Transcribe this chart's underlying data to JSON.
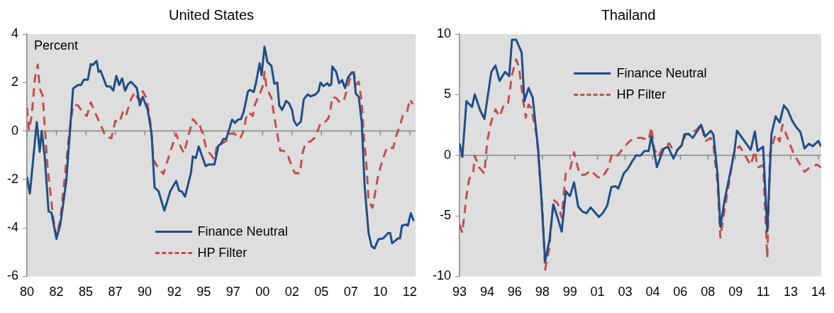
{
  "chart_data": [
    {
      "type": "line",
      "title": "United States",
      "ylabel": "Percent",
      "xlim": [
        "1980-01",
        "2013-01"
      ],
      "ylim": [
        -6,
        4
      ],
      "yticks": [
        -6,
        -4,
        -2,
        0,
        2,
        4
      ],
      "xticks": [
        {
          "value": "1980-01",
          "label": "80"
        },
        {
          "value": "1982-07",
          "label": "82"
        },
        {
          "value": "1985-01",
          "label": "85"
        },
        {
          "value": "1987-07",
          "label": "87"
        },
        {
          "value": "1990-01",
          "label": "90"
        },
        {
          "value": "1992-07",
          "label": "92"
        },
        {
          "value": "1995-01",
          "label": "95"
        },
        {
          "value": "1997-07",
          "label": "97"
        },
        {
          "value": "2000-01",
          "label": "00"
        },
        {
          "value": "2002-07",
          "label": "02"
        },
        {
          "value": "2005-01",
          "label": "05"
        },
        {
          "value": "2007-07",
          "label": "07"
        },
        {
          "value": "2010-01",
          "label": "10"
        },
        {
          "value": "2012-07",
          "label": "12"
        }
      ],
      "legend": "bottom",
      "ref_lines": [
        {
          "axis": "y",
          "value": 0,
          "color": "#888888"
        }
      ],
      "series": [
        {
          "name": "Finance Neutral",
          "color": "#1f4e87",
          "line_style": "solid",
          "x": [
            "1980-01",
            "1980-04",
            "1980-11",
            "1981-02",
            "1981-04",
            "1981-07",
            "1981-11",
            "1982-02",
            "1982-07",
            "1982-11",
            "1983-05",
            "1983-12",
            "1984-05",
            "1984-08",
            "1984-11",
            "1985-03",
            "1985-06",
            "1985-08",
            "1985-12",
            "1986-02",
            "1986-04",
            "1986-10",
            "1987-02",
            "1987-05",
            "1987-08",
            "1987-11",
            "1988-02",
            "1988-05",
            "1988-08",
            "1988-11",
            "1989-05",
            "1989-08",
            "1989-10",
            "1989-11",
            "1990-04",
            "1990-08",
            "1990-11",
            "1991-03",
            "1991-09",
            "1992-03",
            "1992-09",
            "1992-12",
            "1993-03",
            "1993-06",
            "1993-12",
            "1994-02",
            "1994-05",
            "1994-08",
            "1995-03",
            "1995-06",
            "1995-12",
            "1996-04",
            "1996-07",
            "1996-09",
            "1996-12",
            "1997-06",
            "1997-09",
            "1997-12",
            "1998-03",
            "1998-06",
            "1998-10",
            "1998-12",
            "1999-04",
            "1999-06",
            "1999-10",
            "1999-12",
            "2000-03",
            "2000-06",
            "2000-10",
            "2001-01",
            "2001-04",
            "2001-06",
            "2001-09",
            "2002-01",
            "2002-04",
            "2002-07",
            "2002-09",
            "2002-12",
            "2003-04",
            "2003-07",
            "2003-11",
            "2004-02",
            "2004-07",
            "2004-10",
            "2004-12",
            "2005-03",
            "2005-07",
            "2005-09",
            "2005-11",
            "2005-12",
            "2006-04",
            "2006-07",
            "2006-10",
            "2007-01",
            "2007-04",
            "2007-08",
            "2007-10",
            "2007-12",
            "2008-03",
            "2008-06",
            "2008-09",
            "2009-01",
            "2009-04",
            "2009-07",
            "2009-11",
            "2010-04",
            "2010-09",
            "2010-11",
            "2011-01",
            "2011-07",
            "2011-09",
            "2011-11",
            "2012-03",
            "2012-05",
            "2012-08",
            "2012-11"
          ],
          "values": [
            -1.89,
            -2.58,
            0.37,
            -0.86,
            0.0,
            -1.0,
            -3.32,
            -3.37,
            -4.45,
            -3.86,
            -2.09,
            1.75,
            1.9,
            1.9,
            2.12,
            2.12,
            2.76,
            2.72,
            2.89,
            2.44,
            2.49,
            1.85,
            1.83,
            1.67,
            2.27,
            1.9,
            2.17,
            1.66,
            1.93,
            2.03,
            1.77,
            1.06,
            1.31,
            1.41,
            0.87,
            -0.12,
            -2.33,
            -2.48,
            -3.29,
            -2.48,
            -2.06,
            -2.46,
            -2.51,
            -2.71,
            -1.74,
            -1.05,
            -1.12,
            -0.64,
            -1.45,
            -1.38,
            -1.38,
            -0.61,
            -0.51,
            -0.33,
            -0.33,
            0.47,
            0.33,
            0.47,
            0.49,
            0.82,
            1.61,
            1.7,
            1.61,
            1.93,
            2.79,
            2.3,
            3.48,
            2.84,
            2.69,
            1.95,
            2.0,
            1.06,
            0.87,
            1.24,
            1.14,
            0.87,
            0.42,
            0.23,
            0.39,
            1.31,
            1.51,
            1.43,
            1.51,
            1.64,
            2.0,
            1.85,
            1.97,
            1.87,
            1.93,
            2.66,
            2.44,
            1.97,
            2.1,
            1.77,
            2.2,
            2.42,
            2.36,
            1.54,
            1.41,
            0.37,
            -2.29,
            -4.21,
            -4.75,
            -4.85,
            -4.47,
            -4.43,
            -4.21,
            -4.21,
            -4.63,
            -4.43,
            -4.43,
            -3.91,
            -3.86,
            -3.91,
            -3.39,
            -3.71
          ]
        },
        {
          "name": "HP Filter",
          "color": "#c0504d",
          "line_style": "dashed",
          "x": [
            "1980-01",
            "1980-03",
            "1980-06",
            "1980-09",
            "1980-12",
            "1981-02",
            "1981-03",
            "1981-05",
            "1981-07",
            "1981-10",
            "1982-01",
            "1982-04",
            "1982-07",
            "1982-11",
            "1983-03",
            "1983-08",
            "1983-12",
            "1984-05",
            "1984-09",
            "1985-02",
            "1985-06",
            "1985-12",
            "1986-06",
            "1986-09",
            "1987-03",
            "1987-07",
            "1987-11",
            "1988-03",
            "1988-06",
            "1988-11",
            "1989-03",
            "1989-07",
            "1989-11",
            "1990-03",
            "1990-07",
            "1990-10",
            "1991-03",
            "1991-08",
            "1991-12",
            "1992-05",
            "1992-09",
            "1993-02",
            "1993-05",
            "1993-09",
            "1994-02",
            "1994-06",
            "1994-08",
            "1994-12",
            "1995-04",
            "1995-08",
            "1995-12",
            "1996-03",
            "1996-07",
            "1996-12",
            "1997-03",
            "1997-08",
            "1998-02",
            "1998-06",
            "1998-08",
            "1998-11",
            "1999-03",
            "1999-05",
            "1999-08",
            "1999-11",
            "2000-02",
            "2000-03",
            "2000-05",
            "2000-10",
            "2001-02",
            "2001-07",
            "2001-10",
            "2002-02",
            "2002-07",
            "2002-10",
            "2003-03",
            "2003-06",
            "2003-09",
            "2004-02",
            "2004-07",
            "2004-12",
            "2005-04",
            "2005-08",
            "2005-10",
            "2005-12",
            "2006-04",
            "2006-08",
            "2006-12",
            "2007-03",
            "2007-07",
            "2007-10",
            "2007-12",
            "2008-03",
            "2008-06",
            "2008-08",
            "2008-11",
            "2009-01",
            "2009-05",
            "2009-08",
            "2009-11",
            "2010-04",
            "2010-08",
            "2011-02",
            "2011-05",
            "2011-09",
            "2011-12",
            "2012-04",
            "2012-07",
            "2012-10"
          ],
          "values": [
            0.97,
            0.03,
            0.67,
            2.15,
            2.74,
            1.75,
            1.66,
            1.46,
            0.28,
            -1.5,
            -2.58,
            -3.67,
            -4.35,
            -3.67,
            -2.09,
            -0.12,
            1.08,
            1.06,
            0.82,
            0.62,
            1.18,
            0.62,
            0.08,
            -0.22,
            -0.3,
            0.42,
            0.35,
            0.82,
            0.65,
            1.31,
            1.61,
            1.26,
            1.64,
            1.34,
            0.28,
            -1.2,
            -1.55,
            -1.77,
            -1.25,
            -0.61,
            -0.12,
            -0.69,
            -0.91,
            -0.27,
            0.49,
            0.3,
            0.37,
            -0.12,
            -0.76,
            -0.96,
            -1.18,
            -0.51,
            -0.53,
            -0.41,
            -0.12,
            -0.1,
            -0.32,
            0.03,
            0.52,
            0.77,
            0.62,
            1.06,
            1.36,
            1.61,
            1.95,
            2.44,
            1.8,
            1.36,
            0.33,
            -0.81,
            -0.81,
            -0.91,
            -1.5,
            -1.74,
            -1.74,
            -0.86,
            -0.49,
            -0.43,
            -0.24,
            0.33,
            0.35,
            0.52,
            0.82,
            1.41,
            1.36,
            1.16,
            1.28,
            1.7,
            2.3,
            2.44,
            1.9,
            2.03,
            1.21,
            -0.12,
            -1.5,
            -2.88,
            -3.17,
            -2.48,
            -1.79,
            -1.1,
            -0.66,
            -0.71,
            -0.22,
            0.23,
            0.65,
            0.75,
            1.31,
            1.11
          ]
        }
      ]
    },
    {
      "type": "line",
      "title": "Thailand",
      "xlim": [
        "1993-01",
        "2014-11"
      ],
      "ylim": [
        -10,
        10
      ],
      "yticks": [
        -10,
        -5,
        0,
        5,
        10
      ],
      "xticks": [
        {
          "value": "1993-01",
          "label": "93"
        },
        {
          "value": "1994-09",
          "label": "94"
        },
        {
          "value": "1996-05",
          "label": "96"
        },
        {
          "value": "1998-01",
          "label": "98"
        },
        {
          "value": "1999-09",
          "label": "99"
        },
        {
          "value": "2001-05",
          "label": "01"
        },
        {
          "value": "2003-01",
          "label": "03"
        },
        {
          "value": "2004-09",
          "label": "04"
        },
        {
          "value": "2006-05",
          "label": "06"
        },
        {
          "value": "2008-01",
          "label": "08"
        },
        {
          "value": "2009-09",
          "label": "09"
        },
        {
          "value": "2011-05",
          "label": "11"
        },
        {
          "value": "2013-01",
          "label": "13"
        },
        {
          "value": "2014-09",
          "label": "14"
        }
      ],
      "legend": "top",
      "ref_lines": [
        {
          "axis": "y",
          "value": 0,
          "color": "#888888"
        }
      ],
      "series": [
        {
          "name": "Finance Neutral",
          "color": "#1f4e87",
          "line_style": "solid",
          "x": [
            "1993-01",
            "1993-03",
            "1993-06",
            "1993-10",
            "1993-12",
            "1994-04",
            "1994-07",
            "1994-12",
            "1995-03",
            "1995-06",
            "1995-10",
            "1996-01",
            "1996-03",
            "1996-06",
            "1996-10",
            "1996-12",
            "1997-03",
            "1997-06",
            "1997-10",
            "1997-12",
            "1998-03",
            "1998-06",
            "1998-09",
            "1998-12",
            "1999-03",
            "1999-06",
            "1999-09",
            "1999-12",
            "2000-03",
            "2000-06",
            "2000-09",
            "2000-12",
            "2001-06",
            "2001-09",
            "2001-12",
            "2002-03",
            "2002-06",
            "2002-08",
            "2002-12",
            "2003-03",
            "2003-06",
            "2003-09",
            "2003-12",
            "2004-03",
            "2004-06",
            "2004-08",
            "2004-12",
            "2005-03",
            "2005-05",
            "2005-08",
            "2005-12",
            "2006-03",
            "2006-06",
            "2006-08",
            "2006-11",
            "2007-02",
            "2007-06",
            "2007-08",
            "2007-11",
            "2008-03",
            "2008-05",
            "2008-08",
            "2008-10",
            "2009-01",
            "2009-08",
            "2009-10",
            "2010-03",
            "2010-08",
            "2010-11",
            "2011-01",
            "2011-05",
            "2011-08",
            "2011-11",
            "2012-02",
            "2012-05",
            "2012-08",
            "2012-11",
            "2013-02",
            "2013-05",
            "2013-08",
            "2013-11",
            "2014-02",
            "2014-05",
            "2014-09",
            "2014-11"
          ],
          "values": [
            0.98,
            -0.14,
            4.47,
            3.98,
            5.02,
            3.69,
            3.0,
            6.86,
            7.41,
            6.14,
            6.88,
            6.53,
            9.53,
            9.53,
            8.49,
            4.47,
            5.55,
            4.76,
            0.45,
            -2.98,
            -8.76,
            -7.1,
            -4.06,
            -5.14,
            -6.31,
            -2.98,
            -3.37,
            -2.24,
            -4.25,
            -4.65,
            -4.78,
            -4.31,
            -5.1,
            -4.75,
            -4.16,
            -2.63,
            -2.55,
            -2.75,
            -1.51,
            -1.12,
            -0.53,
            0.0,
            -0.04,
            0.35,
            0.35,
            1.57,
            -0.98,
            -0.04,
            0.55,
            0.71,
            -0.27,
            0.45,
            0.84,
            1.73,
            1.76,
            1.43,
            2.12,
            2.51,
            1.53,
            2.02,
            1.69,
            -1.61,
            -5.92,
            -3.76,
            0.16,
            2.02,
            1.24,
            0.45,
            1.96,
            0.35,
            0.71,
            -6.3,
            1.73,
            3.2,
            2.71,
            4.12,
            3.69,
            2.86,
            2.31,
            1.92,
            0.55,
            0.94,
            0.75,
            1.18,
            0.71
          ]
        },
        {
          "name": "HP Filter",
          "color": "#c0504d",
          "line_style": "dashed",
          "x": [
            "1993-01",
            "1993-03",
            "1993-06",
            "1993-08",
            "1993-11",
            "1993-12",
            "1994-03",
            "1994-07",
            "1994-09",
            "1994-12",
            "1995-03",
            "1995-06",
            "1995-09",
            "1995-12",
            "1996-03",
            "1996-06",
            "1996-08",
            "1996-11",
            "1997-01",
            "1997-03",
            "1997-05",
            "1997-09",
            "1997-11",
            "1998-01",
            "1998-03",
            "1998-06",
            "1998-09",
            "1998-12",
            "1999-03",
            "1999-06",
            "1999-09",
            "1999-12",
            "2000-04",
            "2000-08",
            "2000-12",
            "2001-05",
            "2001-08",
            "2002-01",
            "2002-03",
            "2002-06",
            "2002-10",
            "2003-01",
            "2003-04",
            "2003-08",
            "2004-01",
            "2004-06",
            "2004-08",
            "2004-10",
            "2005-01",
            "2005-04",
            "2005-09",
            "2005-12",
            "2006-03",
            "2006-06",
            "2006-09",
            "2006-12",
            "2007-05",
            "2007-08",
            "2007-11",
            "2008-03",
            "2008-05",
            "2008-08",
            "2008-10",
            "2009-01",
            "2009-05",
            "2009-08",
            "2009-12",
            "2010-04",
            "2010-08",
            "2010-11",
            "2011-01",
            "2011-05",
            "2011-08",
            "2011-10",
            "2012-02",
            "2012-05",
            "2012-07",
            "2012-11",
            "2013-03",
            "2013-07",
            "2013-11",
            "2014-03",
            "2014-08",
            "2014-11"
          ],
          "values": [
            -5.73,
            -6.41,
            -3.37,
            -1.96,
            -1.37,
            -0.04,
            -0.98,
            -1.51,
            1.14,
            2.8,
            3.78,
            3.2,
            4.12,
            4.18,
            6.63,
            7.9,
            7.31,
            4.57,
            3.1,
            4.18,
            3.88,
            1.53,
            -1.41,
            -4.35,
            -9.45,
            -7.69,
            -3.67,
            -3.96,
            -5.14,
            -1.41,
            -1.22,
            0.25,
            -1.61,
            -1.61,
            -1.25,
            -1.8,
            -1.9,
            -1.02,
            -0.04,
            -0.24,
            0.35,
            0.75,
            1.14,
            1.43,
            1.43,
            1.24,
            2.31,
            0.55,
            -0.14,
            0.55,
            0.98,
            0.35,
            0.45,
            0.78,
            1.76,
            1.76,
            2.12,
            2.55,
            1.14,
            1.43,
            0.75,
            -2.39,
            -6.8,
            -4.55,
            -1.8,
            0.35,
            0.75,
            -0.04,
            -0.82,
            0.35,
            -1.02,
            -0.82,
            -8.47,
            0.16,
            1.73,
            1.14,
            2.51,
            1.33,
            0.16,
            -0.63,
            -1.37,
            -0.98,
            -0.78,
            -1.02
          ]
        }
      ]
    }
  ]
}
